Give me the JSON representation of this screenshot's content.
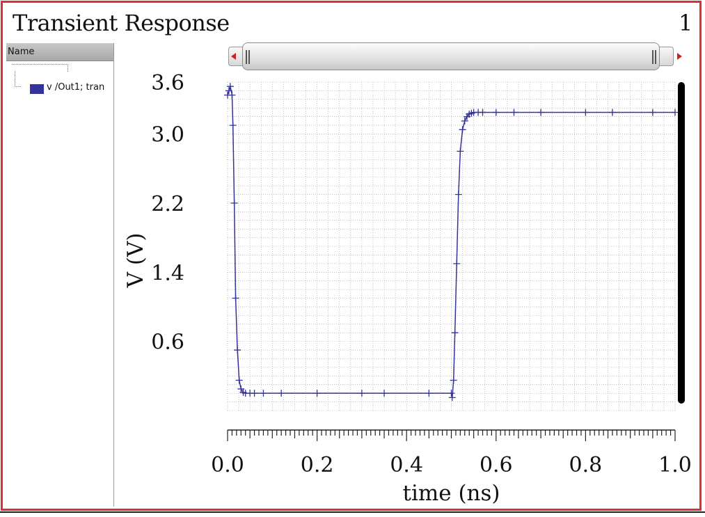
{
  "window": {
    "title": "Transient Response",
    "page_number": "1"
  },
  "sidebar": {
    "header": "Name",
    "root_label": ")",
    "items": [
      {
        "label": "v /Out1; tran",
        "color": "#333399"
      }
    ]
  },
  "colors": {
    "frame": "#d93030",
    "trace": "#333399",
    "grid": "#9a9a9a",
    "marker_bar": "#000000"
  },
  "chart_data": {
    "type": "line",
    "title": "",
    "xlabel": "time (ns)",
    "ylabel": "V (V)",
    "xlim": [
      0.0,
      1.0
    ],
    "ylim": [
      -0.2,
      3.6
    ],
    "x_ticks": [
      "0.0",
      "0.2",
      "0.4",
      "0.6",
      "0.8",
      "1.0"
    ],
    "y_ticks": [
      "0.6",
      "1.4",
      "2.2",
      "3.0",
      "3.6"
    ],
    "grid": true,
    "series": [
      {
        "name": "v /Out1; tran",
        "x": [
          0.0,
          0.003,
          0.006,
          0.01,
          0.012,
          0.015,
          0.018,
          0.022,
          0.026,
          0.03,
          0.035,
          0.04,
          0.05,
          0.06,
          0.08,
          0.12,
          0.2,
          0.3,
          0.35,
          0.45,
          0.5,
          0.502,
          0.505,
          0.508,
          0.512,
          0.516,
          0.52,
          0.525,
          0.53,
          0.535,
          0.54,
          0.545,
          0.55,
          0.56,
          0.57,
          0.6,
          0.64,
          0.7,
          0.8,
          0.86,
          0.95,
          1.0
        ],
        "y": [
          3.45,
          3.5,
          3.55,
          3.45,
          3.1,
          2.2,
          1.1,
          0.5,
          0.15,
          0.05,
          0.01,
          0.0,
          0.0,
          0.0,
          0.0,
          0.0,
          0.0,
          0.0,
          0.0,
          0.0,
          0.0,
          -0.05,
          0.15,
          0.7,
          1.5,
          2.3,
          2.8,
          3.05,
          3.15,
          3.2,
          3.23,
          3.24,
          3.25,
          3.25,
          3.25,
          3.25,
          3.25,
          3.25,
          3.25,
          3.25,
          3.25,
          3.25
        ]
      }
    ]
  }
}
